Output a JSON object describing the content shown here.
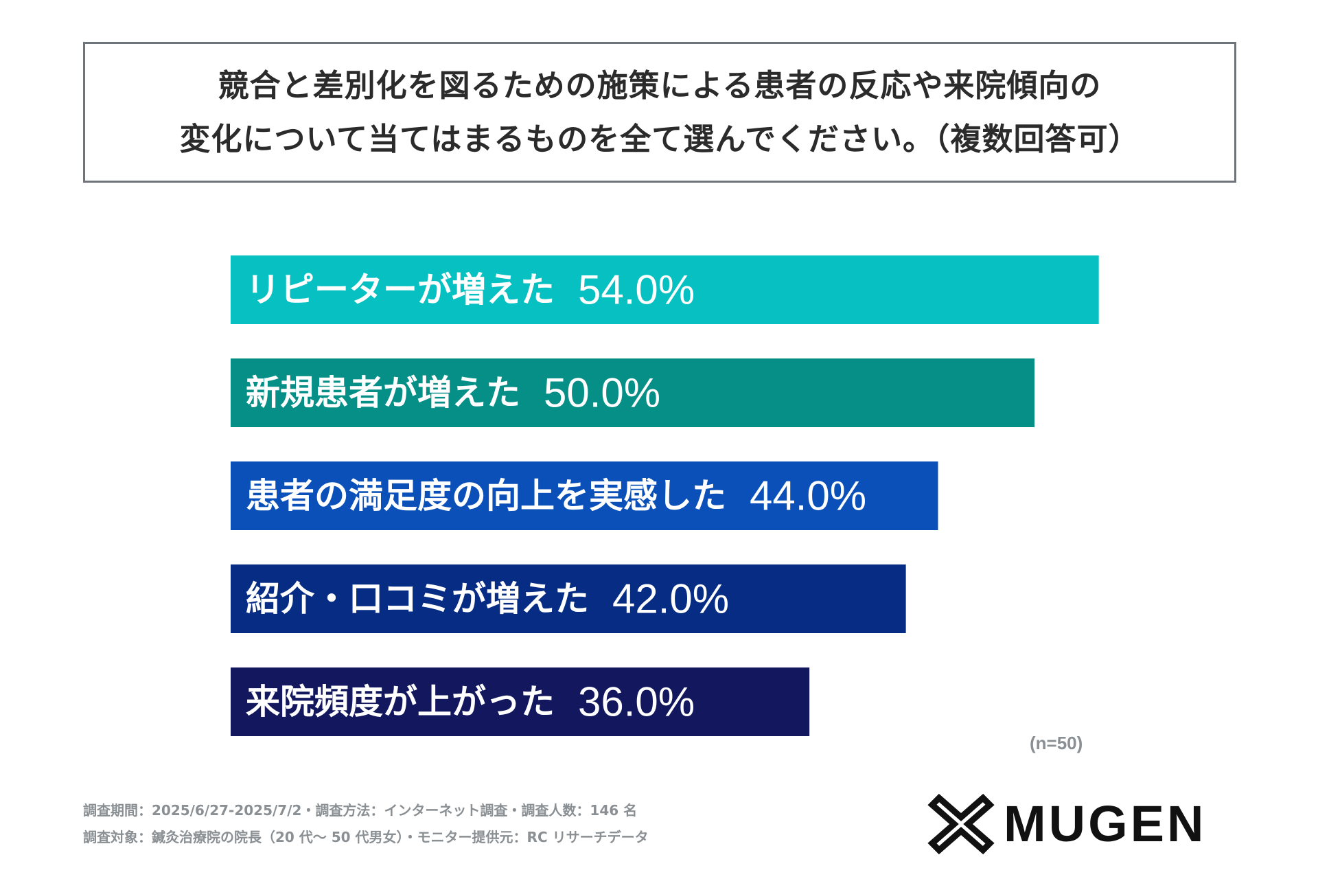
{
  "title": {
    "line1": "競合と差別化を図るための施策による患者の反応や来院傾向の",
    "line2": "変化について当てはまるものを全て選んでください。（複数回答可）"
  },
  "chart_data": {
    "type": "bar",
    "orientation": "horizontal",
    "categories": [
      "リピーターが増えた",
      "新規患者が増えた",
      "患者の満足度の向上を実感した",
      "紹介・口コミが増えた",
      "来院頻度が上がった"
    ],
    "values": [
      54.0,
      50.0,
      44.0,
      42.0,
      36.0
    ],
    "value_labels": [
      "54.0%",
      "50.0%",
      "44.0%",
      "42.0%",
      "36.0%"
    ],
    "colors": [
      "#06c0c2",
      "#068f87",
      "#0a50b8",
      "#072c84",
      "#13185e"
    ],
    "xlim": [
      0,
      100
    ],
    "grid": false,
    "legend": "none"
  },
  "sample_size": "(n=50)",
  "footnotes": {
    "line1": "調査期間：2025/6/27-2025/7/2・調査方法：インターネット調査・調査人数：146 名",
    "line2": "調査対象：鍼灸治療院の院長（20 代〜 50 代男女）・モニター提供元：RC リサーチデータ"
  },
  "logo": {
    "text": "MUGEN",
    "icon": "mugen-logo-icon",
    "color": "#111111"
  }
}
